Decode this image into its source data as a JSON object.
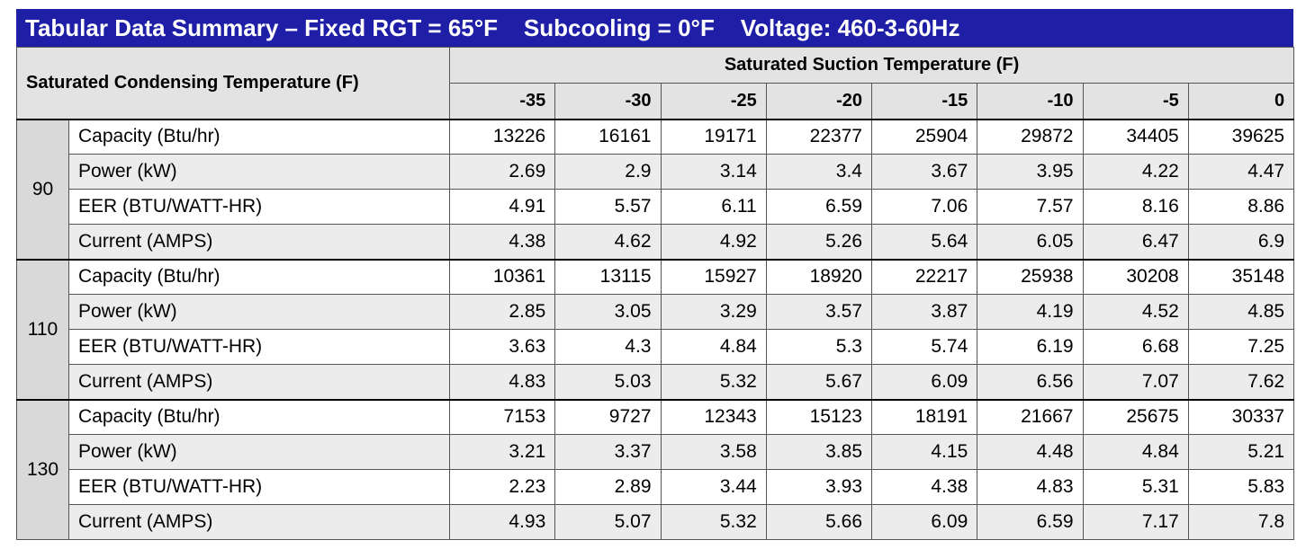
{
  "title": "Tabular Data Summary – Fixed RGT = 65°F    Subcooling = 0°F    Voltage: 460-3-60Hz",
  "table": {
    "corner": "Saturated Condensing Temperature (F)",
    "column_group": "Saturated Suction Temperature (F)",
    "columns": [
      -35,
      -30,
      -25,
      -20,
      -15,
      -10,
      -5,
      0
    ],
    "groups": [
      {
        "label": 90,
        "rows": [
          {
            "label": "Capacity (Btu/hr)",
            "values": [
              13226,
              16161,
              19171,
              22377,
              25904,
              29872,
              34405,
              39625
            ]
          },
          {
            "label": "Power (kW)",
            "values": [
              2.69,
              2.9,
              3.14,
              3.4,
              3.67,
              3.95,
              4.22,
              4.47
            ]
          },
          {
            "label": "EER (BTU/WATT-HR)",
            "values": [
              4.91,
              5.57,
              6.11,
              6.59,
              7.06,
              7.57,
              8.16,
              8.86
            ]
          },
          {
            "label": "Current (AMPS)",
            "values": [
              4.38,
              4.62,
              4.92,
              5.26,
              5.64,
              6.05,
              6.47,
              6.9
            ]
          }
        ]
      },
      {
        "label": 110,
        "rows": [
          {
            "label": "Capacity (Btu/hr)",
            "values": [
              10361,
              13115,
              15927,
              18920,
              22217,
              25938,
              30208,
              35148
            ]
          },
          {
            "label": "Power (kW)",
            "values": [
              2.85,
              3.05,
              3.29,
              3.57,
              3.87,
              4.19,
              4.52,
              4.85
            ]
          },
          {
            "label": "EER (BTU/WATT-HR)",
            "values": [
              3.63,
              4.3,
              4.84,
              5.3,
              5.74,
              6.19,
              6.68,
              7.25
            ]
          },
          {
            "label": "Current (AMPS)",
            "values": [
              4.83,
              5.03,
              5.32,
              5.67,
              6.09,
              6.56,
              7.07,
              7.62
            ]
          }
        ]
      },
      {
        "label": 130,
        "rows": [
          {
            "label": "Capacity (Btu/hr)",
            "values": [
              7153,
              9727,
              12343,
              15123,
              18191,
              21667,
              25675,
              30337
            ]
          },
          {
            "label": "Power (kW)",
            "values": [
              3.21,
              3.37,
              3.58,
              3.85,
              4.15,
              4.48,
              4.84,
              5.21
            ]
          },
          {
            "label": "EER (BTU/WATT-HR)",
            "values": [
              2.23,
              2.89,
              3.44,
              3.93,
              4.38,
              4.83,
              5.31,
              5.83
            ]
          },
          {
            "label": "Current (AMPS)",
            "values": [
              4.93,
              5.07,
              5.32,
              5.66,
              6.09,
              6.59,
              7.17,
              7.8
            ]
          }
        ]
      }
    ]
  }
}
